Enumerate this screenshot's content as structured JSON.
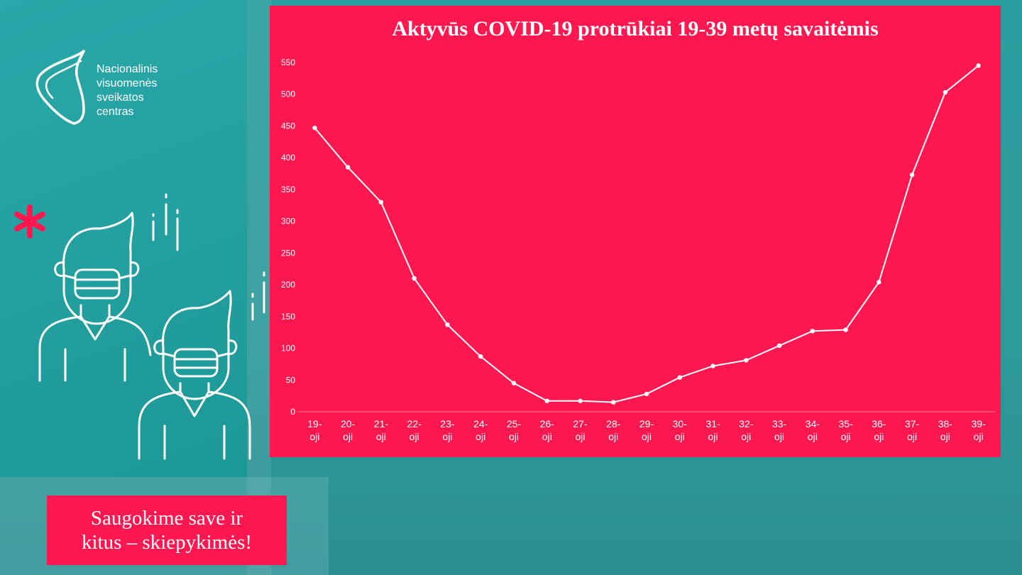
{
  "brand": {
    "lines": [
      "Nacionalinis",
      "visuomenės",
      "sveikatos",
      "centras"
    ],
    "logo_icon": "nvsc-logo-icon",
    "accent": "#ff1850",
    "primary": "#2a9e9f"
  },
  "tagline": {
    "line1": "Saugokime save ir",
    "line2": "kitus – skiepykimės!"
  },
  "illustration": {
    "icon": "masked-people-icon",
    "asterisk": "*"
  },
  "chart_data": {
    "type": "line",
    "title": "Aktyvūs COVID-19 protrūkiai 19-39 metų savaitėmis",
    "xlabel": "",
    "ylabel": "",
    "categories": [
      [
        "19-",
        "oji"
      ],
      [
        "20-",
        "oji"
      ],
      [
        "21-",
        "oji"
      ],
      [
        "22-",
        "oji"
      ],
      [
        "23-",
        "oji"
      ],
      [
        "24-",
        "oji"
      ],
      [
        "25-",
        "oji"
      ],
      [
        "26-",
        "oji"
      ],
      [
        "27-",
        "oji"
      ],
      [
        "28-",
        "oji"
      ],
      [
        "29-",
        "oji"
      ],
      [
        "30-",
        "oji"
      ],
      [
        "31-",
        "oji"
      ],
      [
        "32-",
        "oji"
      ],
      [
        "33-",
        "oji"
      ],
      [
        "34-",
        "oji"
      ],
      [
        "35-",
        "oji"
      ],
      [
        "36-",
        "oji"
      ],
      [
        "37-",
        "oji"
      ],
      [
        "38-",
        "oji"
      ],
      [
        "39-",
        "oji"
      ]
    ],
    "values": [
      447,
      385,
      330,
      210,
      137,
      87,
      45,
      17,
      17,
      15,
      28,
      54,
      72,
      81,
      104,
      127,
      129,
      204,
      373,
      503,
      545
    ],
    "ylim": [
      0,
      550
    ],
    "yticks": [
      0,
      50,
      100,
      150,
      200,
      250,
      300,
      350,
      400,
      450,
      500,
      550
    ],
    "grid": false,
    "legend": "none",
    "line_color": "#ffffff"
  }
}
